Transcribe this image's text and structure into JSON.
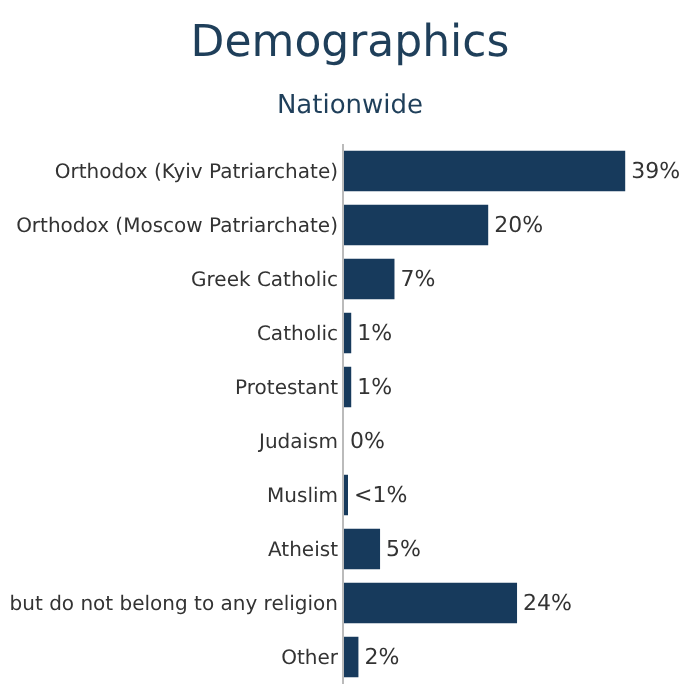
{
  "chart_data": {
    "type": "bar",
    "title": "Demographics",
    "subtitle": "Nationwide",
    "orientation": "horizontal",
    "categories": [
      "Orthodox (Kyiv Patriarchate)",
      "Orthodox (Moscow Patriarchate)",
      "Greek Catholic",
      "Catholic",
      "Protestant",
      "Judaism",
      "Muslim",
      "Atheist",
      "but do not belong to any religion",
      "Other"
    ],
    "values": [
      39,
      20,
      7,
      1,
      1,
      0,
      0.3,
      5,
      24,
      2
    ],
    "value_labels": [
      "39%",
      "20%",
      "7%",
      "1%",
      "1%",
      "0%",
      "<1%",
      "5%",
      "24%",
      "2%"
    ],
    "color": "#173a5c",
    "grid": false,
    "legend": false
  }
}
